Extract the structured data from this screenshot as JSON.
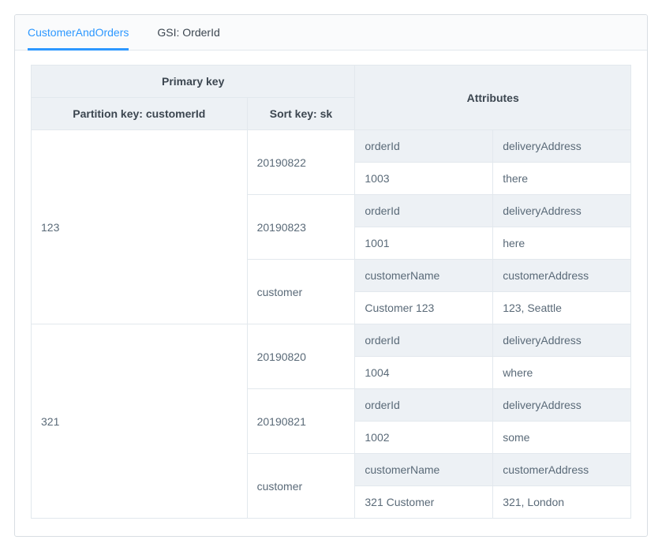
{
  "tabs": {
    "active": "CustomerAndOrders",
    "other": "GSI: OrderId"
  },
  "headers": {
    "primaryKey": "Primary key",
    "partitionKey": "Partition key: customerId",
    "sortKey": "Sort key: sk",
    "attributes": "Attributes"
  },
  "partitions": [
    {
      "pk": "123",
      "items": [
        {
          "sk": "20190822",
          "attrNames": [
            "orderId",
            "deliveryAddress"
          ],
          "attrValues": [
            "1003",
            "there"
          ]
        },
        {
          "sk": "20190823",
          "attrNames": [
            "orderId",
            "deliveryAddress"
          ],
          "attrValues": [
            "1001",
            "here"
          ]
        },
        {
          "sk": "customer",
          "attrNames": [
            "customerName",
            "customerAddress"
          ],
          "attrValues": [
            "Customer 123",
            "123, Seattle"
          ]
        }
      ]
    },
    {
      "pk": "321",
      "items": [
        {
          "sk": "20190820",
          "attrNames": [
            "orderId",
            "deliveryAddress"
          ],
          "attrValues": [
            "1004",
            "where"
          ]
        },
        {
          "sk": "20190821",
          "attrNames": [
            "orderId",
            "deliveryAddress"
          ],
          "attrValues": [
            "1002",
            "some"
          ]
        },
        {
          "sk": "customer",
          "attrNames": [
            "customerName",
            "customerAddress"
          ],
          "attrValues": [
            "321 Customer",
            "321, London"
          ]
        }
      ]
    }
  ],
  "style": {
    "colors": {
      "border": "#e2e8ed",
      "headerBg": "#edf1f5",
      "text": "#5a6a78",
      "textDark": "#3c4650",
      "tabActive": "#2d98ff",
      "white": "#ffffff",
      "frameBorder": "#d8dee3"
    },
    "columnWidths": {
      "partitionKey": "36%",
      "sortKey": "18%",
      "attr1": "23%",
      "attr2": "23%"
    },
    "fontSize": 14
  }
}
